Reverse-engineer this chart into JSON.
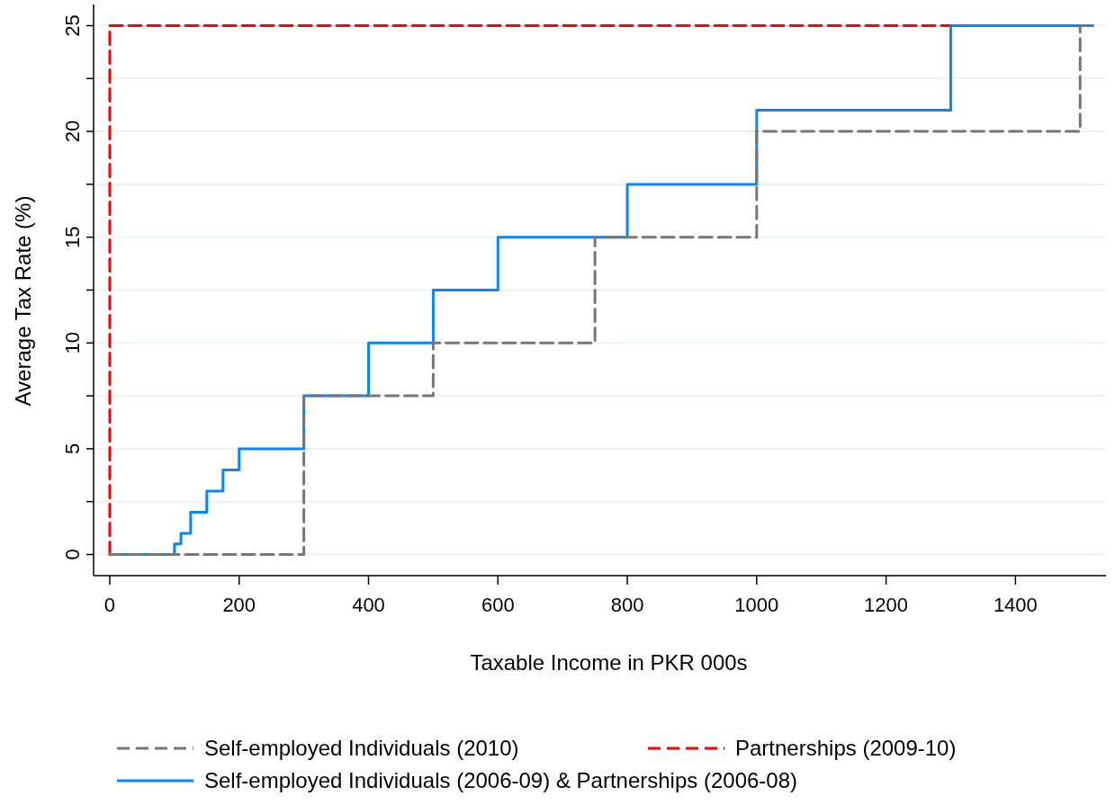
{
  "chart_data": {
    "type": "step",
    "xlabel": "Taxable Income in PKR 000s",
    "ylabel": "Average Tax Rate (%)",
    "xlim": [
      -25,
      1540
    ],
    "ylim": [
      -1,
      26
    ],
    "xticks": [
      0,
      200,
      400,
      600,
      800,
      1000,
      1200,
      1400
    ],
    "yticks": [
      0,
      {
        "value": 2.5,
        "label": null
      },
      5,
      {
        "value": 7.5,
        "label": null
      },
      10,
      {
        "value": 12.5,
        "label": null
      },
      15,
      {
        "value": 17.5,
        "label": null
      },
      20,
      {
        "value": 22.5,
        "label": null
      },
      25
    ],
    "grid": "y",
    "legend": "bottom",
    "series": [
      {
        "name": "Self-employed Individuals (2010)",
        "color": "#767676",
        "line_style": "dashed",
        "x": [
          0,
          300,
          500,
          750,
          1000,
          1500,
          1520
        ],
        "values": [
          0,
          7.5,
          10,
          15,
          20,
          25,
          25
        ]
      },
      {
        "name": "Partnerships (2009-10)",
        "color": "#ff0000",
        "line_style": "dashed",
        "x": [
          0,
          0,
          1300
        ],
        "values": [
          0,
          25,
          25
        ]
      },
      {
        "name": "Self-employed Individuals (2006-09) & Partnerships (2006-08)",
        "color": "#0a84ff",
        "line_style": "solid",
        "x": [
          0,
          100,
          110,
          125,
          150,
          175,
          200,
          300,
          400,
          500,
          600,
          800,
          1000,
          1300,
          1520
        ],
        "values": [
          0,
          0.5,
          1,
          2,
          3,
          4,
          5,
          7.5,
          10,
          12.5,
          15,
          17.5,
          21,
          25,
          25
        ]
      }
    ]
  }
}
